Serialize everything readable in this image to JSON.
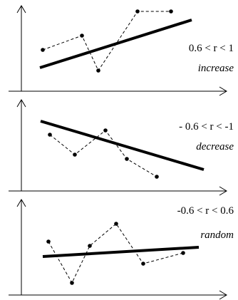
{
  "panels": [
    {
      "id": "increase",
      "range_label": "0.6 < r < 1",
      "trend_label": "increase"
    },
    {
      "id": "decrease",
      "range_label": "- 0.6 < r < -1",
      "trend_label": "decrease"
    },
    {
      "id": "random",
      "range_label": "-0.6 < r < 0.6",
      "trend_label": "random"
    }
  ]
}
